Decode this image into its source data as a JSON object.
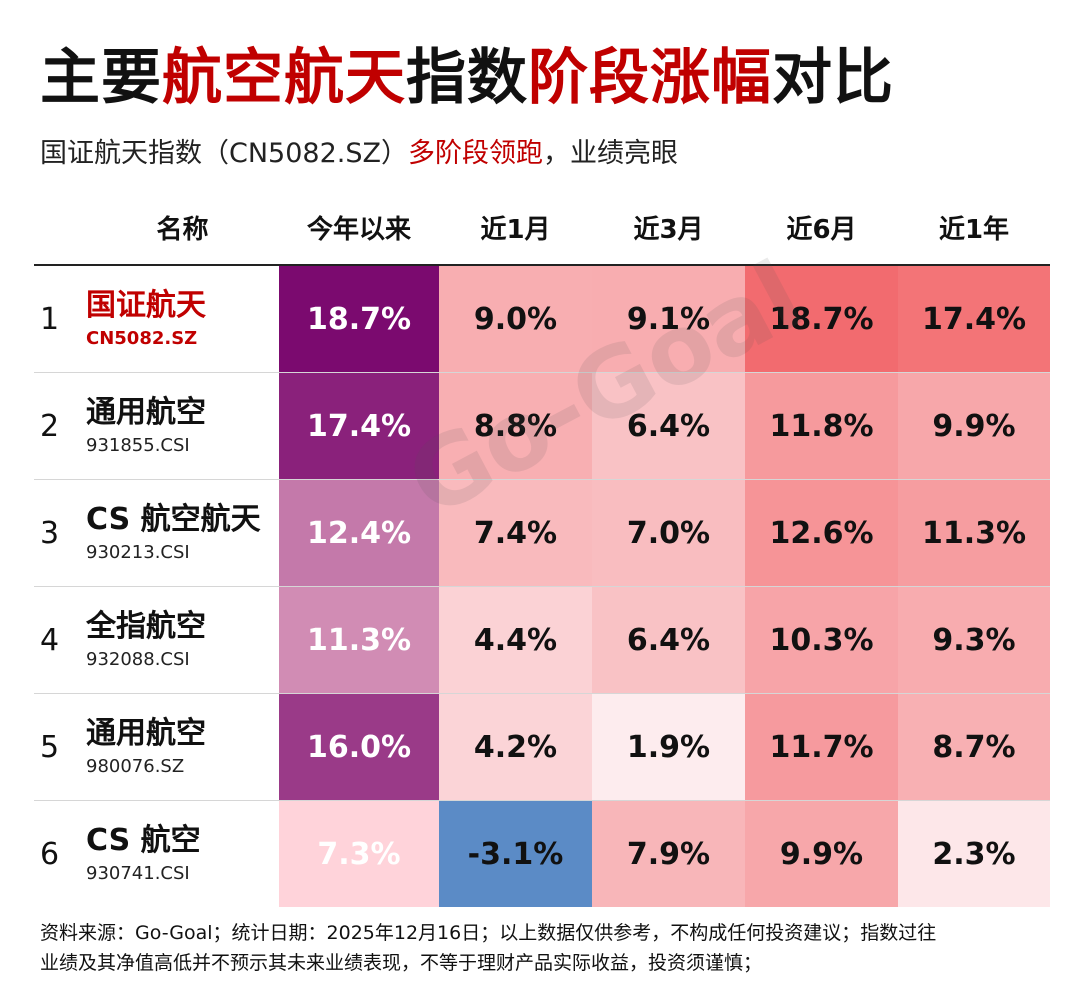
{
  "title": {
    "part1": "主要",
    "part2": "航空航天",
    "part3": "指数",
    "part4": "阶段涨幅",
    "part5": "对比"
  },
  "subtitle": {
    "lead": "国证航天指数（CN5082.SZ）",
    "highlight": "多阶段领跑",
    "tail": "，业绩亮眼"
  },
  "watermark": "Go-Goal",
  "footer": {
    "line1": "资料来源：Go-Goal；统计日期：2025年12月16日；以上数据仅供参考，不构成任何投资建议；指数过往",
    "line2": "业绩及其净值高低并不预示其未来业绩表现，不等于理财产品实际收益，投资须谨慎；"
  },
  "colors": {
    "ytd_high": "#7b0a6f",
    "ytd_low": "#ffd3da",
    "pos_high": "#f26b6f",
    "pos_low": "#fdecee",
    "negative": "#5b8bc6"
  },
  "chart_data": {
    "type": "table",
    "columns": [
      "名称",
      "今年以来",
      "近1月",
      "近3月",
      "近6月",
      "近1年"
    ],
    "rows": [
      {
        "rank": "1",
        "name": "国证航天",
        "code": "CN5082.SZ",
        "values": [
          18.7,
          9.0,
          9.1,
          18.7,
          17.4
        ],
        "labels": [
          "18.7%",
          "9.0%",
          "9.1%",
          "18.7%",
          "17.4%"
        ]
      },
      {
        "rank": "2",
        "name": "通用航空",
        "code": "931855.CSI",
        "values": [
          17.4,
          8.8,
          6.4,
          11.8,
          9.9
        ],
        "labels": [
          "17.4%",
          "8.8%",
          "6.4%",
          "11.8%",
          "9.9%"
        ]
      },
      {
        "rank": "3",
        "name": "CS 航空航天",
        "code": "930213.CSI",
        "values": [
          12.4,
          7.4,
          7.0,
          12.6,
          11.3
        ],
        "labels": [
          "12.4%",
          "7.4%",
          "7.0%",
          "12.6%",
          "11.3%"
        ]
      },
      {
        "rank": "4",
        "name": "全指航空",
        "code": "932088.CSI",
        "values": [
          11.3,
          4.4,
          6.4,
          10.3,
          9.3
        ],
        "labels": [
          "11.3%",
          "4.4%",
          "6.4%",
          "10.3%",
          "9.3%"
        ]
      },
      {
        "rank": "5",
        "name": "通用航空",
        "code": "980076.SZ",
        "values": [
          16.0,
          4.2,
          1.9,
          11.7,
          8.7
        ],
        "labels": [
          "16.0%",
          "4.2%",
          "1.9%",
          "11.7%",
          "8.7%"
        ]
      },
      {
        "rank": "6",
        "name": "CS 航空",
        "code": "930741.CSI",
        "values": [
          7.3,
          -3.1,
          7.9,
          9.9,
          2.3
        ],
        "labels": [
          "7.3%",
          "-3.1%",
          "7.9%",
          "9.9%",
          "2.3%"
        ]
      }
    ]
  }
}
